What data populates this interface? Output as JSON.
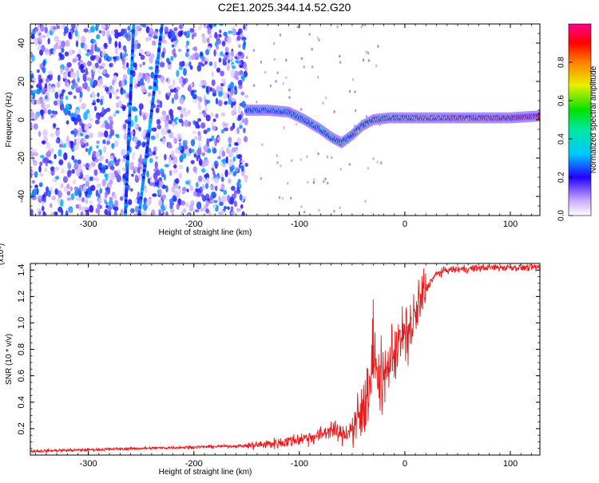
{
  "title": "C2E1.2025.344.14.52.G20",
  "chart_data": [
    {
      "type": "heatmap",
      "xlabel": "Height of straight line (km)",
      "ylabel": "Frequency (Hz)",
      "xlim": [
        -355,
        128
      ],
      "ylim": [
        -50,
        50
      ],
      "xticks": [
        -300,
        -200,
        -100,
        0,
        100
      ],
      "yticks": [
        -40,
        -20,
        0,
        20,
        40
      ],
      "colorbar": {
        "label": "Normalized spectral amplitude",
        "range": [
          0.0,
          1.0
        ],
        "ticks": [
          0.0,
          0.2,
          0.4,
          0.6,
          0.8
        ]
      },
      "noise_region_x": [
        -355,
        -150
      ],
      "features": [
        {
          "kind": "line",
          "points": [
            [
              -257,
              50
            ],
            [
              -265,
              -50
            ]
          ]
        },
        {
          "kind": "line",
          "points": [
            [
              -230,
              50
            ],
            [
              -252,
              -50
            ]
          ]
        },
        {
          "kind": "ridge",
          "x": [
            -150,
            -130,
            -110,
            -95,
            -80,
            -70,
            -60,
            -50,
            -40,
            -30,
            -15,
            0,
            20,
            50,
            80,
            100,
            128
          ],
          "y": [
            5,
            5,
            4,
            0,
            -5,
            -9,
            -12,
            -8,
            -3,
            0,
            1,
            1,
            1,
            1,
            1,
            1,
            2
          ]
        }
      ]
    },
    {
      "type": "line",
      "xlabel": "Height of straight line (km)",
      "ylabel": "SNR (10 * v/v)",
      "yscale_label": "(x10⁴)",
      "xlim": [
        -355,
        128
      ],
      "ylim": [
        0,
        1.45
      ],
      "xticks": [
        -300,
        -200,
        -100,
        0,
        100
      ],
      "yticks": [
        0.2,
        0.4,
        0.6,
        0.8,
        1.0,
        1.2,
        1.4
      ],
      "series": [
        {
          "color": "#e8191a",
          "x": [
            -355,
            -300,
            -250,
            -200,
            -150,
            -120,
            -100,
            -80,
            -70,
            -60,
            -50,
            -40,
            -35,
            -30,
            -25,
            -20,
            -15,
            -10,
            -5,
            0,
            5,
            10,
            15,
            20,
            25,
            30,
            40,
            60,
            80,
            100,
            128
          ],
          "y": [
            0.03,
            0.04,
            0.05,
            0.06,
            0.07,
            0.09,
            0.12,
            0.15,
            0.2,
            0.15,
            0.2,
            0.3,
            0.5,
            0.7,
            0.6,
            0.55,
            0.7,
            0.8,
            0.85,
            0.9,
            0.95,
            1.05,
            1.15,
            1.25,
            1.32,
            1.37,
            1.4,
            1.41,
            1.42,
            1.42,
            1.42
          ]
        }
      ]
    }
  ]
}
